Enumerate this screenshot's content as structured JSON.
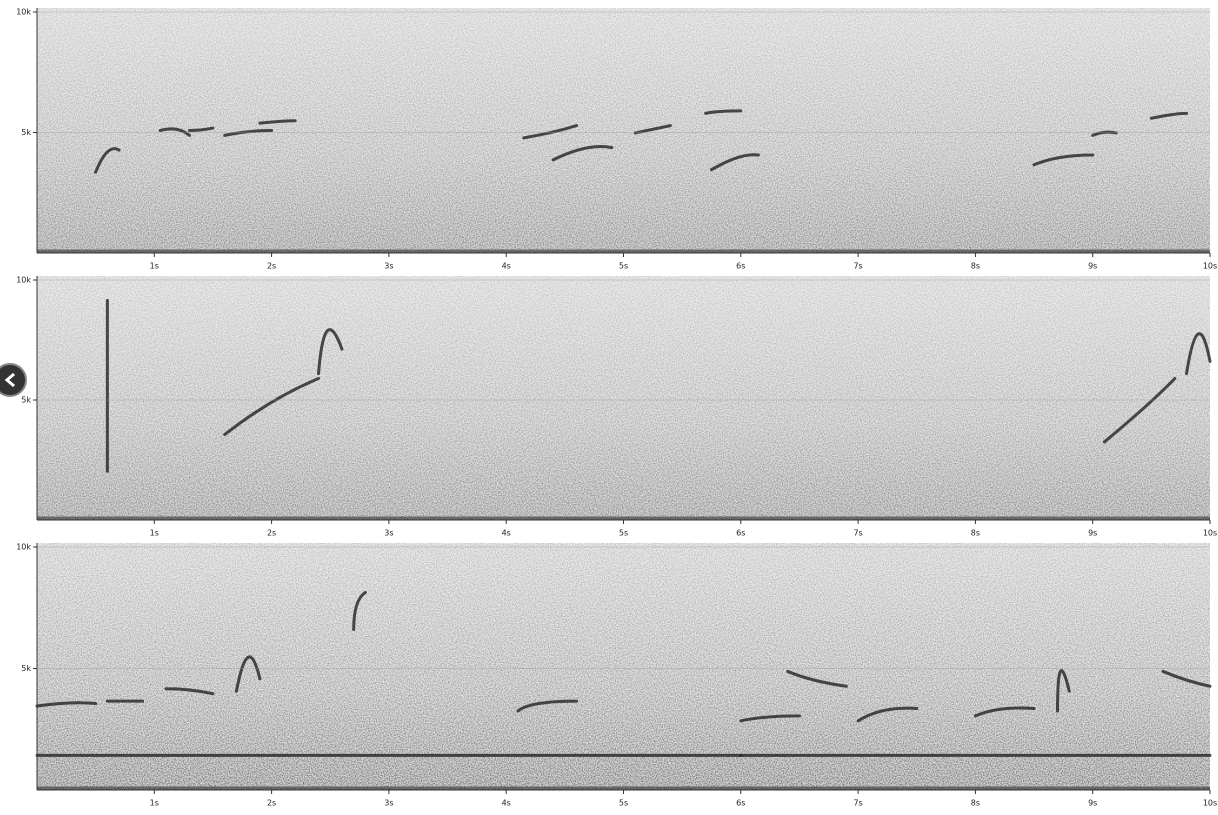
{
  "chart_data": [
    {
      "type": "spectrogram",
      "xlim": [
        0,
        10
      ],
      "xticks": [
        {
          "value": 1,
          "label": "1s"
        },
        {
          "value": 2,
          "label": "2s"
        },
        {
          "value": 3,
          "label": "3s"
        },
        {
          "value": 4,
          "label": "4s"
        },
        {
          "value": 5,
          "label": "5s"
        },
        {
          "value": 6,
          "label": "6s"
        },
        {
          "value": 7,
          "label": "7s"
        },
        {
          "value": 8,
          "label": "8s"
        },
        {
          "value": 9,
          "label": "9s"
        },
        {
          "value": 10,
          "label": "10s"
        }
      ],
      "ylim": [
        0,
        10000
      ],
      "yticks": [
        {
          "value": 5000,
          "label": "5k"
        },
        {
          "value": 10000,
          "label": "10k"
        }
      ]
    },
    {
      "type": "spectrogram",
      "xlim": [
        0,
        10
      ],
      "xticks": [
        {
          "value": 1,
          "label": "1s"
        },
        {
          "value": 2,
          "label": "2s"
        },
        {
          "value": 3,
          "label": "3s"
        },
        {
          "value": 4,
          "label": "4s"
        },
        {
          "value": 5,
          "label": "5s"
        },
        {
          "value": 6,
          "label": "6s"
        },
        {
          "value": 7,
          "label": "7s"
        },
        {
          "value": 8,
          "label": "8s"
        },
        {
          "value": 9,
          "label": "9s"
        },
        {
          "value": 10,
          "label": "10s"
        }
      ],
      "ylim": [
        0,
        10000
      ],
      "yticks": [
        {
          "value": 5000,
          "label": "5k"
        },
        {
          "value": 10000,
          "label": "10k"
        }
      ]
    },
    {
      "type": "spectrogram",
      "xlim": [
        0,
        10
      ],
      "xticks": [
        {
          "value": 1,
          "label": "1s"
        },
        {
          "value": 2,
          "label": "2s"
        },
        {
          "value": 3,
          "label": "3s"
        },
        {
          "value": 4,
          "label": "4s"
        },
        {
          "value": 5,
          "label": "5s"
        },
        {
          "value": 6,
          "label": "6s"
        },
        {
          "value": 7,
          "label": "7s"
        },
        {
          "value": 8,
          "label": "8s"
        },
        {
          "value": 9,
          "label": "9s"
        },
        {
          "value": 10,
          "label": "10s"
        }
      ],
      "ylim": [
        0,
        10000
      ],
      "yticks": [
        {
          "value": 5000,
          "label": "5k"
        },
        {
          "value": 10000,
          "label": "10k"
        }
      ]
    }
  ]
}
